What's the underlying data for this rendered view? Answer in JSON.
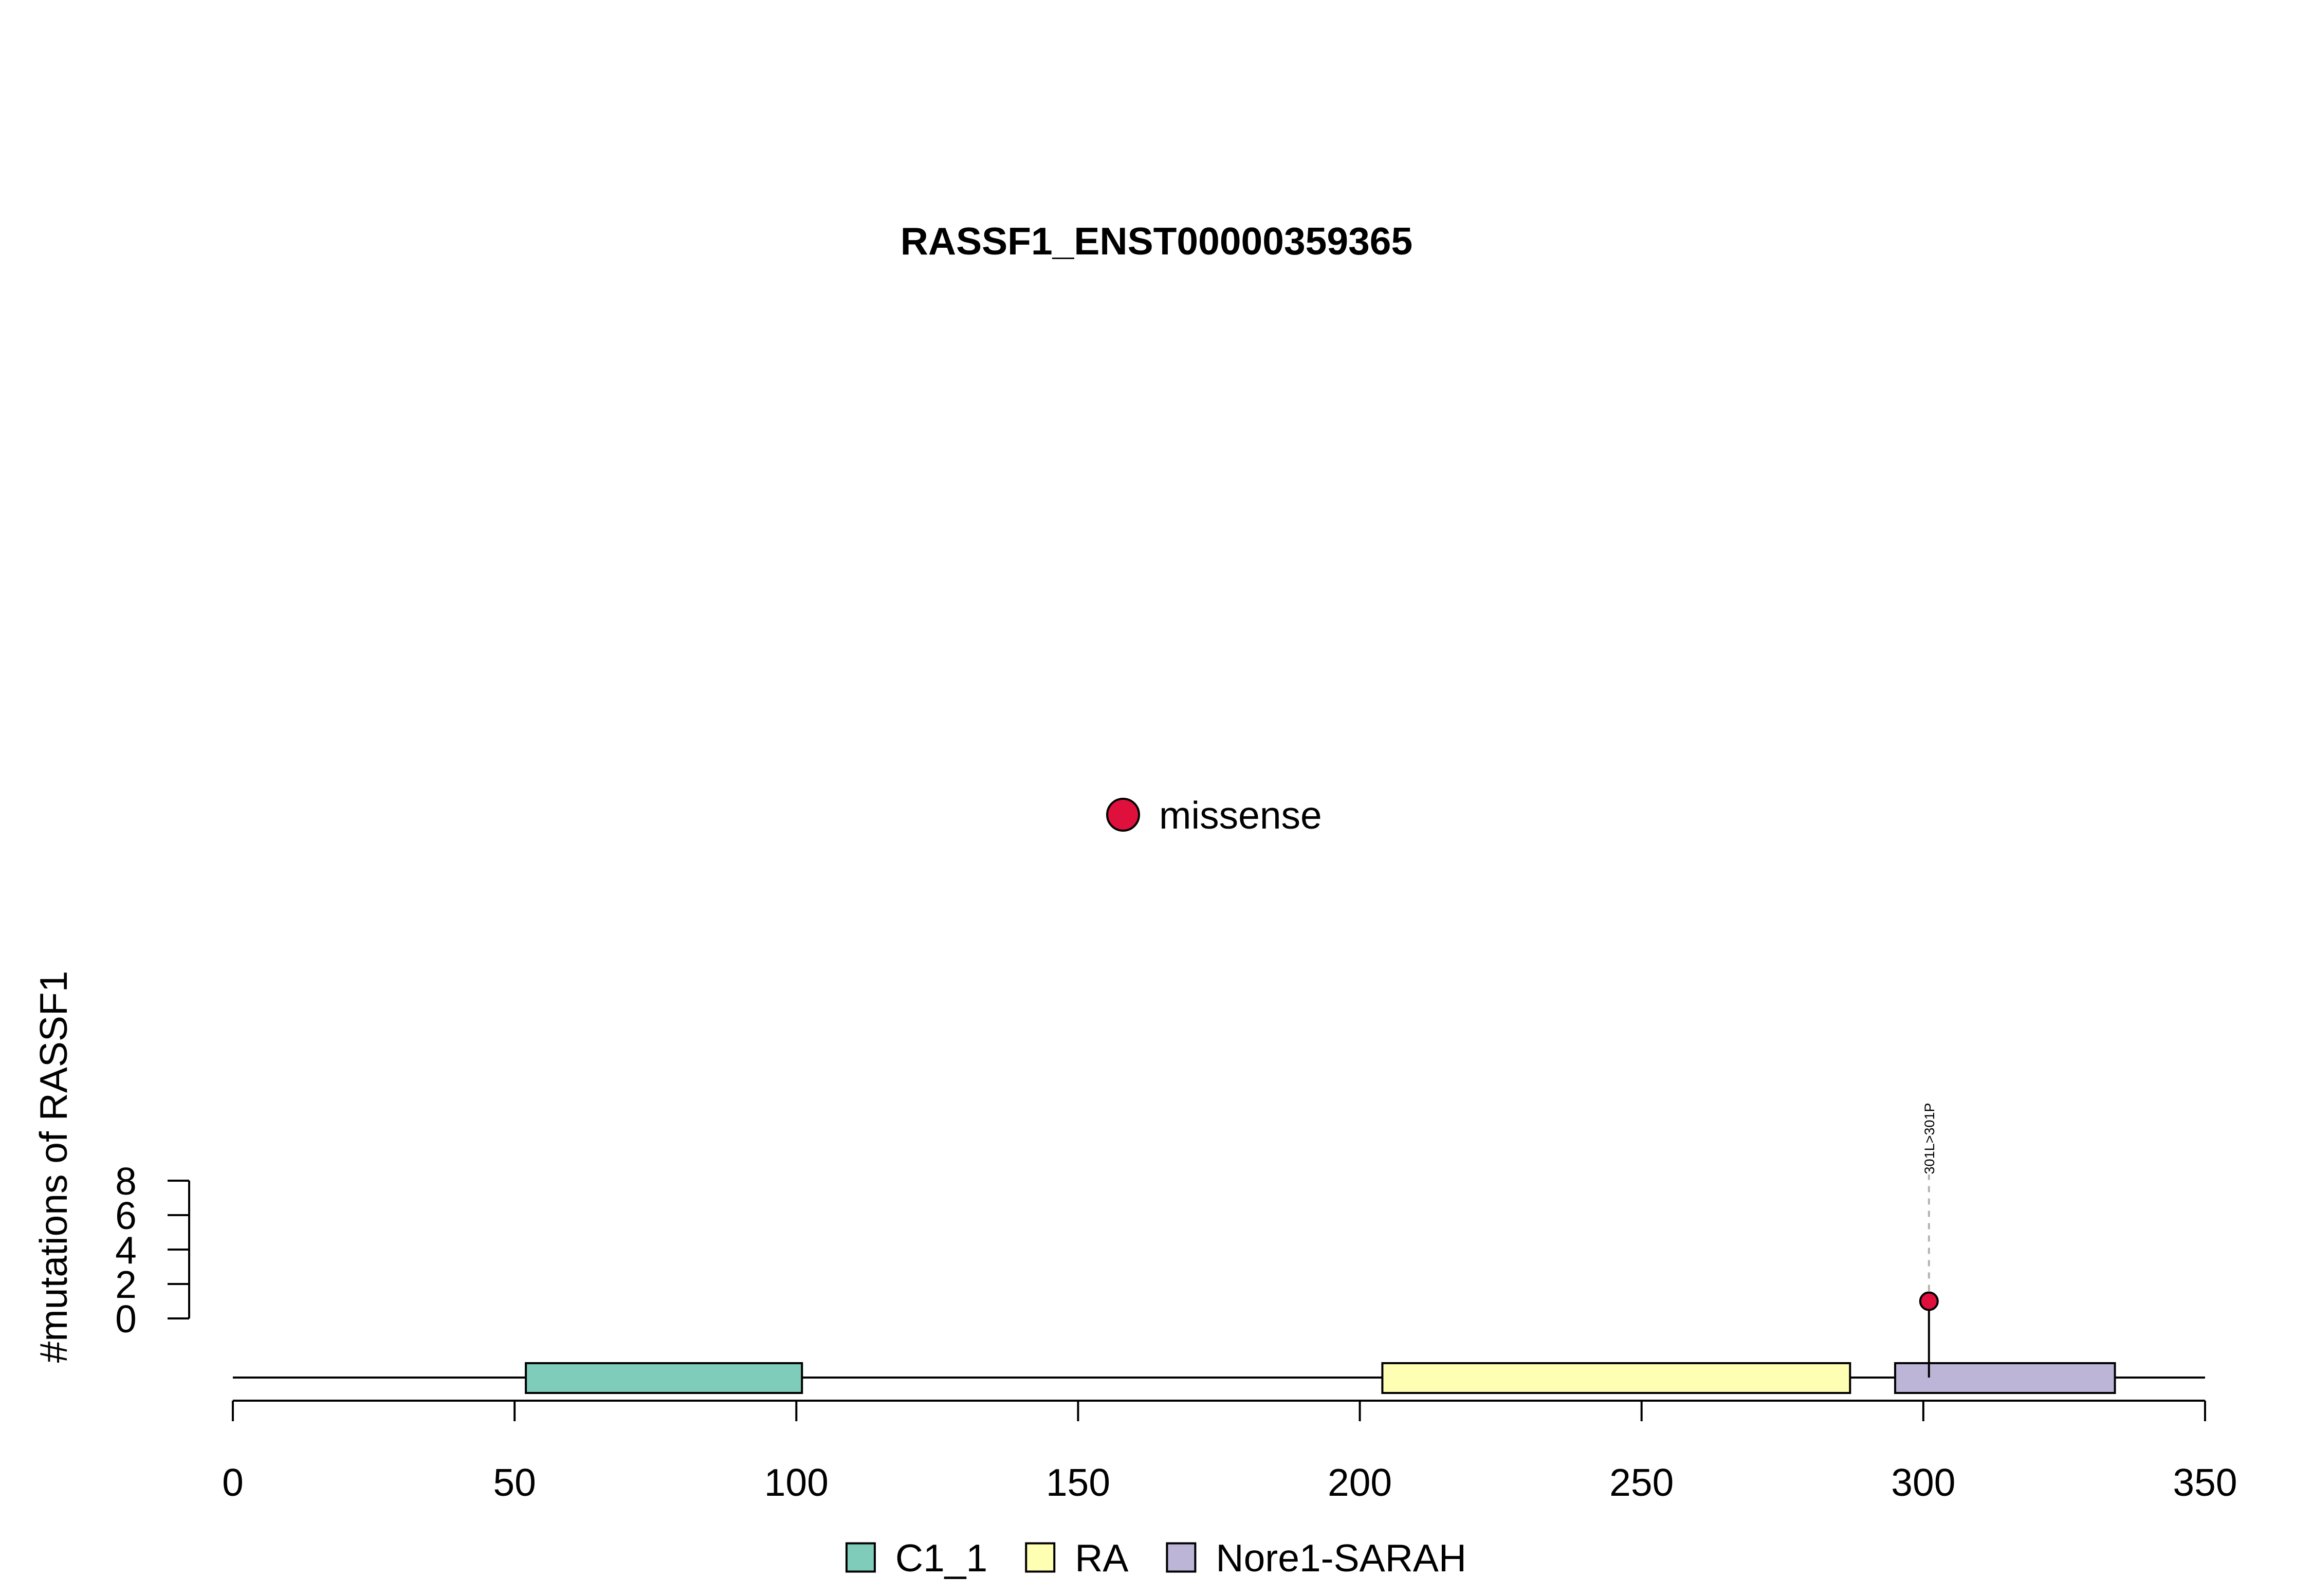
{
  "chart_data": {
    "type": "lollipop",
    "title": "RASSF1_ENST00000359365",
    "ylabel": "#mutations of RASSF1",
    "xlabel": "",
    "xlim": [
      0,
      350
    ],
    "x_ticks": [
      "0",
      "50",
      "100",
      "150",
      "200",
      "250",
      "300",
      "350"
    ],
    "ylim": [
      0,
      8
    ],
    "y_ticks": [
      "0",
      "2",
      "4",
      "6",
      "8"
    ],
    "protein_length": 350,
    "domains": [
      {
        "name": "C1_1",
        "start": 52,
        "end": 101,
        "color": "#7fccba"
      },
      {
        "name": "RA",
        "start": 204,
        "end": 287,
        "color": "#ffffb3"
      },
      {
        "name": "Nore1-SARAH",
        "start": 295,
        "end": 334,
        "color": "#bcb5d8"
      }
    ],
    "mutations": [
      {
        "position": 301,
        "count": 1,
        "label": "301L>301P",
        "type": "missense"
      }
    ],
    "mutation_legend": [
      {
        "label": "missense",
        "color": "#e0103c"
      }
    ],
    "domain_legend_placement": "bottom",
    "mutation_legend_placement": "center"
  }
}
